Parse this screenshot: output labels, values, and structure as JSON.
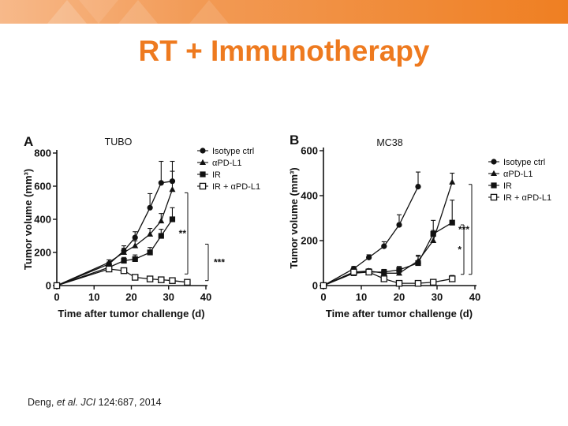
{
  "slide": {
    "title": "RT + Immunotherapy",
    "citation": {
      "authors": "Deng,",
      "etal": "et al.",
      "journal": "JCI",
      "ref": "124:687, 2014"
    },
    "colors": {
      "title": "#ee7a1f",
      "banner": "#f08a2c"
    }
  },
  "chart_data": [
    {
      "panel": "A",
      "type": "line",
      "title": "TUBO",
      "xlabel": "Time after tumor challenge (d)",
      "ylabel": "Tumor volume (mm³)",
      "xlim": [
        0,
        40
      ],
      "ylim": [
        0,
        800
      ],
      "xticks": [
        0,
        10,
        20,
        30,
        40
      ],
      "yticks": [
        0,
        200,
        400,
        600,
        800
      ],
      "legend_position": "top-right",
      "series": [
        {
          "name": "Isotype ctrl",
          "marker": "circle",
          "x": [
            0,
            14,
            18,
            21,
            25,
            28,
            31
          ],
          "y": [
            0,
            130,
            210,
            290,
            470,
            620,
            630
          ],
          "err": [
            0,
            12,
            30,
            35,
            85,
            130,
            120
          ]
        },
        {
          "name": "αPD-L1",
          "marker": "triangle",
          "x": [
            0,
            14,
            18,
            21,
            25,
            28,
            31
          ],
          "y": [
            0,
            140,
            200,
            240,
            310,
            390,
            580
          ],
          "err": [
            0,
            15,
            25,
            30,
            35,
            45,
            110
          ]
        },
        {
          "name": "IR",
          "marker": "square",
          "x": [
            0,
            14,
            18,
            21,
            25,
            28,
            31
          ],
          "y": [
            0,
            110,
            150,
            160,
            200,
            300,
            400
          ],
          "err": [
            0,
            10,
            20,
            25,
            30,
            40,
            70
          ]
        },
        {
          "name": "IR + αPD-L1",
          "marker": "open-square",
          "x": [
            0,
            14,
            18,
            21,
            25,
            28,
            31,
            35
          ],
          "y": [
            0,
            100,
            90,
            50,
            40,
            35,
            30,
            20
          ],
          "err": [
            0,
            10,
            15,
            10,
            8,
            8,
            6,
            5
          ]
        }
      ],
      "annotations": [
        {
          "label": "**",
          "y_from": 70,
          "y_to": 560
        },
        {
          "label": "***",
          "y_from": 30,
          "y_to": 250
        }
      ]
    },
    {
      "panel": "B",
      "type": "line",
      "title": "MC38",
      "xlabel": "Time after tumor challenge (d)",
      "ylabel": "Tumor volume (mm³)",
      "xlim": [
        0,
        40
      ],
      "ylim": [
        0,
        600
      ],
      "xticks": [
        0,
        10,
        20,
        30,
        40
      ],
      "yticks": [
        0,
        200,
        400,
        600
      ],
      "legend_position": "top-right",
      "series": [
        {
          "name": "Isotype ctrl",
          "marker": "circle",
          "x": [
            0,
            8,
            12,
            16,
            20,
            25
          ],
          "y": [
            0,
            75,
            125,
            175,
            270,
            440
          ],
          "err": [
            0,
            10,
            12,
            20,
            45,
            65
          ]
        },
        {
          "name": "αPD-L1",
          "marker": "triangle",
          "x": [
            0,
            8,
            12,
            16,
            20,
            25,
            29,
            34
          ],
          "y": [
            0,
            60,
            65,
            55,
            55,
            110,
            200,
            460
          ],
          "err": [
            0,
            8,
            10,
            12,
            15,
            25,
            45,
            40
          ]
        },
        {
          "name": "IR",
          "marker": "square",
          "x": [
            0,
            8,
            12,
            16,
            20,
            25,
            29,
            34
          ],
          "y": [
            0,
            55,
            60,
            60,
            70,
            100,
            230,
            280
          ],
          "err": [
            0,
            8,
            10,
            12,
            15,
            30,
            60,
            100
          ]
        },
        {
          "name": "IR + αPD-L1",
          "marker": "open-square",
          "x": [
            0,
            8,
            12,
            16,
            20,
            25,
            29,
            34
          ],
          "y": [
            0,
            60,
            60,
            30,
            10,
            10,
            15,
            30
          ],
          "err": [
            0,
            8,
            10,
            8,
            5,
            5,
            8,
            15
          ]
        }
      ],
      "annotations": [
        {
          "label": "***",
          "y_from": 50,
          "y_to": 450
        },
        {
          "label": "*",
          "y_from": 50,
          "y_to": 270
        }
      ]
    }
  ]
}
